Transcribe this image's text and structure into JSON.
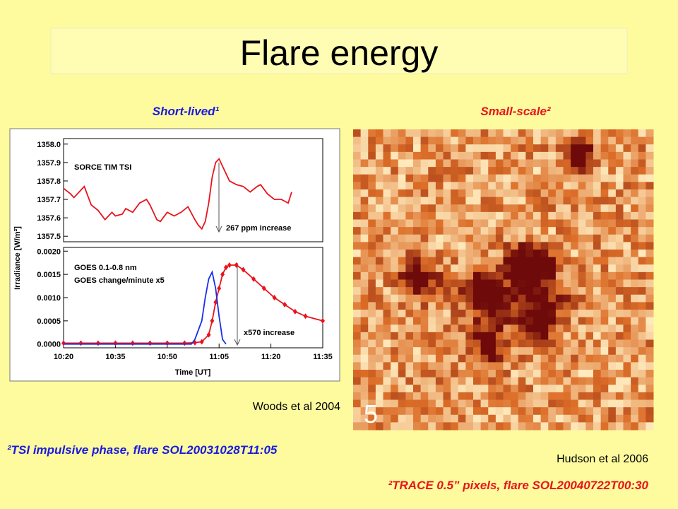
{
  "title": "Flare energy",
  "left_heading": "Short-lived¹",
  "right_heading": "Small-scale²",
  "credit_left": "Woods et al 2004",
  "credit_right": "Hudson et al 2006",
  "image_label": "5",
  "footnote_left": "²TSI impulsive phase, flare SOL20031028T11:05",
  "footnote_right": "²TRACE 0.5” pixels, flare SOL20040722T00:30",
  "chart_data": [
    {
      "type": "line",
      "annotations": [
        "SORCE TIM TSI",
        "267 ppm increase"
      ],
      "xlim": [
        "10:20",
        "11:35"
      ],
      "ylim": [
        1357.47,
        1358.03
      ],
      "yticks": [
        {
          "value": 1358,
          "label": "1358.0"
        },
        1357.9,
        1357.8,
        1357.7,
        1357.6,
        1357.5
      ],
      "series": [
        {
          "color": "#e8141c",
          "marker": "none",
          "x": [
            "10:20",
            "10:22",
            "10:23",
            "10:25",
            "10:26",
            "10:28",
            "10:30",
            "10:32",
            "10:34",
            "10:35",
            "10:37",
            "10:38",
            "10:40",
            "10:42",
            "10:44",
            "10:45",
            "10:47",
            "10:48",
            "10:50",
            "10:52",
            "10:54",
            "10:56",
            "10:58",
            "10:59",
            "11:00",
            "11:01",
            "11:02",
            "11:03",
            "11:04",
            "11:05",
            "11:06",
            "11:07",
            "11:08",
            "11:10",
            "11:12",
            "11:14",
            "11:16",
            "11:17",
            "11:19",
            "11:21",
            "11:23",
            "11:25",
            "11:26"
          ],
          "values": [
            1357.76,
            1357.73,
            1357.71,
            1357.75,
            1357.77,
            1357.67,
            1357.64,
            1357.59,
            1357.63,
            1357.61,
            1357.62,
            1357.65,
            1357.63,
            1357.68,
            1357.7,
            1357.67,
            1357.59,
            1357.58,
            1357.63,
            1357.61,
            1357.63,
            1357.66,
            1357.59,
            1357.56,
            1357.54,
            1357.58,
            1357.68,
            1357.82,
            1357.9,
            1357.92,
            1357.88,
            1357.84,
            1357.8,
            1357.78,
            1357.77,
            1357.74,
            1357.77,
            1357.78,
            1357.73,
            1357.7,
            1357.7,
            1357.68,
            1357.74
          ]
        }
      ]
    },
    {
      "type": "line",
      "ylabel": "Irradiance [W/m²]",
      "xlabel": "Time [UT]",
      "annotations": [
        "x570 increase"
      ],
      "xlim": [
        "10:20",
        "11:35"
      ],
      "ylim": [
        -8e-05,
        0.00208
      ],
      "xticks": [
        "10:20",
        "10:35",
        "10:50",
        "11:05",
        "11:20",
        "11:35"
      ],
      "yticks": [
        {
          "value": 0.002,
          "label": "0.0020"
        },
        {
          "value": 0.0015,
          "label": "0.0015"
        },
        {
          "value": 0.001,
          "label": "0.0010"
        },
        {
          "value": 0.0005,
          "label": "0.0005"
        },
        {
          "value": 0,
          "label": "0.0000"
        }
      ],
      "series": [
        {
          "name": "GOES 0.1-0.8 nm",
          "color": "#e8141c",
          "marker": "diamond",
          "x": [
            "10:20",
            "10:25",
            "10:30",
            "10:35",
            "10:40",
            "10:45",
            "10:50",
            "10:55",
            "10:58",
            "11:00",
            "11:02",
            "11:03",
            "11:04",
            "11:05",
            "11:06",
            "11:07",
            "11:08",
            "11:10",
            "11:12",
            "11:15",
            "11:18",
            "11:21",
            "11:24",
            "11:27",
            "11:30",
            "11:35"
          ],
          "values": [
            2e-05,
            2e-05,
            2e-05,
            2e-05,
            2e-05,
            2e-05,
            2e-05,
            2e-05,
            3e-05,
            5e-05,
            0.0002,
            0.0005,
            0.0009,
            0.0012,
            0.0015,
            0.00165,
            0.0017,
            0.0017,
            0.0016,
            0.0014,
            0.0012,
            0.001,
            0.00085,
            0.0007,
            0.0006,
            0.0005
          ]
        },
        {
          "name": "GOES change/minute x5",
          "color": "#1a2ee8",
          "marker": "none",
          "x": [
            "10:20",
            "10:30",
            "10:40",
            "10:50",
            "10:57",
            "10:58",
            "11:00",
            "11:01",
            "11:02",
            "11:03",
            "11:04",
            "11:05",
            "11:06",
            "11:07"
          ],
          "values": [
            0,
            0,
            0,
            0,
            0,
            0.0001,
            0.0005,
            0.001,
            0.0014,
            0.00155,
            0.0012,
            0.0006,
            0.0001,
            0
          ]
        }
      ]
    }
  ]
}
